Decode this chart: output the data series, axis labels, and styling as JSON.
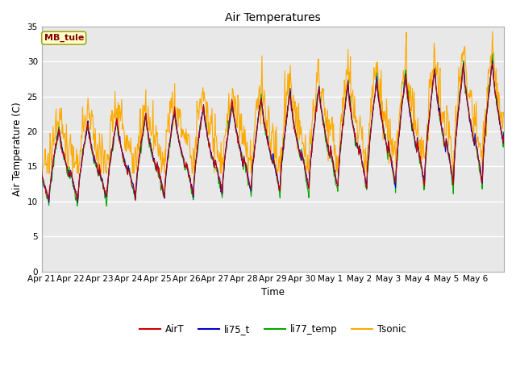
{
  "title": "Air Temperatures",
  "ylabel": "Air Temperature (C)",
  "xlabel": "Time",
  "station_label": "MB_tule",
  "ylim": [
    0,
    35
  ],
  "yticks": [
    0,
    5,
    10,
    15,
    20,
    25,
    30,
    35
  ],
  "colors": {
    "AirT": "#cc0000",
    "li75_t": "#0000cc",
    "li77_temp": "#00aa00",
    "Tsonic": "#ffaa00"
  },
  "background_color": "#ffffff",
  "plot_bg_color": "#e8e8e8",
  "grid_color": "#ffffff",
  "station_box_facecolor": "#ffffcc",
  "station_box_edgecolor": "#999900",
  "station_text_color": "#880000",
  "legend_labels": [
    "AirT",
    "li75_t",
    "li77_temp",
    "Tsonic"
  ],
  "x_tick_labels": [
    "Apr 21",
    "Apr 22",
    "Apr 23",
    "Apr 24",
    "Apr 25",
    "Apr 26",
    "Apr 27",
    "Apr 28",
    "Apr 29",
    "Apr 30",
    "May 1",
    "May 2",
    "May 3",
    "May 4",
    "May 5",
    "May 6"
  ]
}
